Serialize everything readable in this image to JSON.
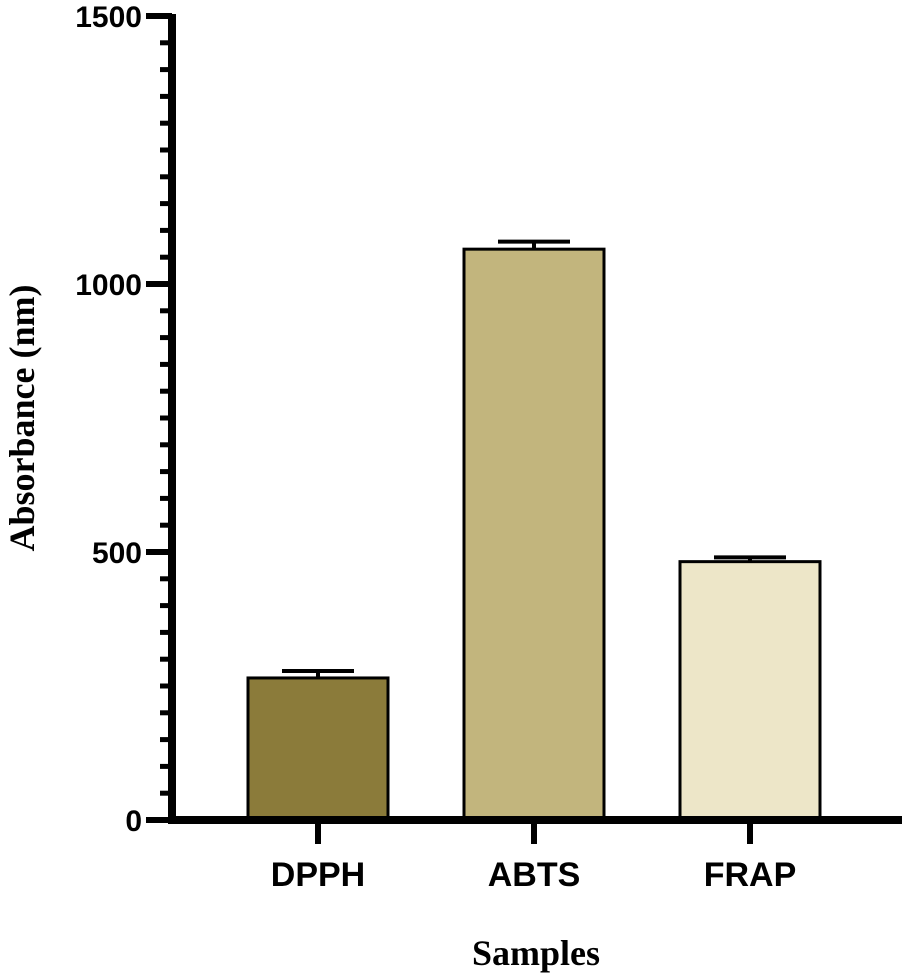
{
  "chart_data": {
    "type": "bar",
    "title": "",
    "xlabel": "Samples",
    "ylabel": "Absorbance (nm)",
    "categories": [
      "DPPH",
      "ABTS",
      "FRAP"
    ],
    "values": [
      265,
      1065,
      482
    ],
    "errors": [
      13,
      14,
      8
    ],
    "bar_colors": [
      "#8b7b3a",
      "#c2b57d",
      "#ede6c8"
    ],
    "ylim": [
      0,
      1500
    ],
    "yticks": [
      0,
      500,
      1000,
      1500
    ],
    "minor_tick_step": 50,
    "grid": false,
    "legend": "none"
  }
}
